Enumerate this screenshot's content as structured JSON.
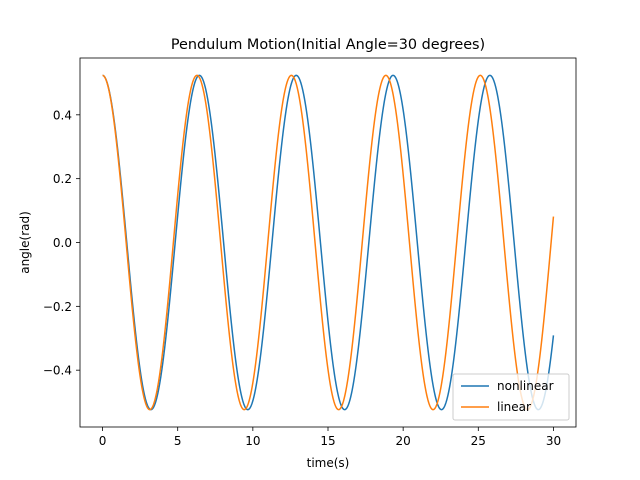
{
  "chart_data": {
    "type": "line",
    "title": "Pendulum Motion(Initial Angle=30 degrees)",
    "xlabel": "time(s)",
    "ylabel": "angle(rad)",
    "xlim": [
      -1.5,
      31.5
    ],
    "ylim": [
      -0.578,
      0.578
    ],
    "xticks": [
      0,
      5,
      10,
      15,
      20,
      25,
      30
    ],
    "xtick_labels": [
      "0",
      "5",
      "10",
      "15",
      "20",
      "25",
      "30"
    ],
    "yticks": [
      -0.4,
      -0.2,
      0.0,
      0.2,
      0.4
    ],
    "ytick_labels": [
      "−0.4",
      "−0.2",
      "0.0",
      "0.2",
      "0.4"
    ],
    "grid": false,
    "legend_position": "lower right",
    "amplitude": 0.5236,
    "t_range": [
      0,
      30
    ],
    "series": [
      {
        "name": "nonlinear",
        "color": "#1f77b4",
        "period": 6.443
      },
      {
        "name": "linear",
        "color": "#ff7f0e",
        "period": 6.283
      }
    ]
  }
}
